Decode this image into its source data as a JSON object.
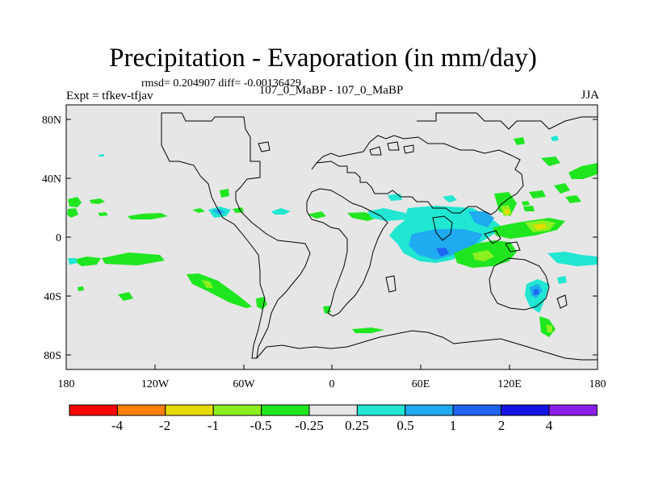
{
  "header": {
    "title": "Precipitation - Evaporation (in mm/day)",
    "stats": "rmsd= 0.204907 diff= -0.00136429",
    "left": "Expt = tfkev-tfjav",
    "center": "107_0_MaBP - 107_0_MaBP",
    "right": "JJA"
  },
  "map": {
    "background_color": "#e6e6e6",
    "x_ticks": [
      "180",
      "120W",
      "60W",
      "0",
      "60E",
      "120E",
      "180"
    ],
    "y_ticks": [
      "80N",
      "40N",
      "0",
      "40S",
      "80S"
    ]
  },
  "colorbar": {
    "colors": [
      "#ff0000",
      "#ff8000",
      "#e6dc00",
      "#8cf020",
      "#20e620",
      "#e6e6e6",
      "#20e6d2",
      "#20aaf0",
      "#1e64f0",
      "#1414e6",
      "#8c1eeb"
    ],
    "labels": [
      "-4",
      "-2",
      "-1",
      "-0.5",
      "-0.25",
      "0.25",
      "0.5",
      "1",
      "2",
      "4"
    ]
  }
}
